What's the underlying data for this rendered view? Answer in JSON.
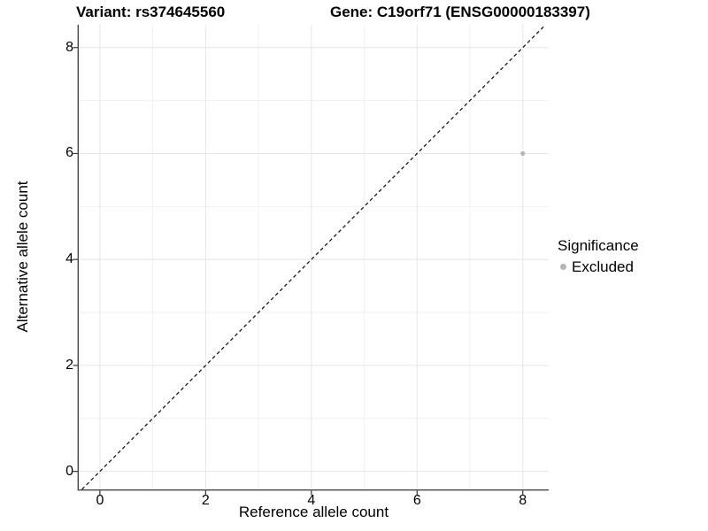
{
  "header": {
    "variant_title": "Variant: rs374645560",
    "gene_title": "Gene: C19orf71 (ENSG00000183397)"
  },
  "axes": {
    "x_label": "Reference allele count",
    "y_label": "Alternative allele count"
  },
  "legend": {
    "title": "Significance",
    "items": [
      {
        "label": "Excluded",
        "color": "#b5b5b5"
      }
    ]
  },
  "colors": {
    "background": "#ffffff",
    "grid_major": "#e6e6e6",
    "grid_minor": "#f1f1f1",
    "axis_line": "#474747",
    "tick_mark": "#333333",
    "text": "#000000",
    "reference_line": "#1a1a1a",
    "point": "#b5b5b5"
  },
  "chart_data": {
    "type": "scatter",
    "title": "Variant: rs374645560 / Gene: C19orf71 (ENSG00000183397)",
    "xlabel": "Reference allele count",
    "ylabel": "Alternative allele count",
    "xlim": [
      -0.4,
      8.49
    ],
    "ylim": [
      -0.34,
      8.43
    ],
    "x_ticks": [
      0,
      2,
      4,
      6,
      8
    ],
    "x_minor_ticks": [
      1,
      3,
      5,
      7
    ],
    "y_ticks": [
      0,
      2,
      4,
      6,
      8
    ],
    "y_minor_ticks": [
      1,
      3,
      5,
      7
    ],
    "grid": true,
    "legend_position": "right",
    "series": [
      {
        "name": "Excluded",
        "color": "#b5b5b5",
        "point_radius": 2.6,
        "points": [
          {
            "x": 8,
            "y": 6
          }
        ]
      }
    ],
    "reference_line": {
      "kind": "identity",
      "equation": "y = x",
      "style": "dashed",
      "color": "#1a1a1a"
    }
  }
}
